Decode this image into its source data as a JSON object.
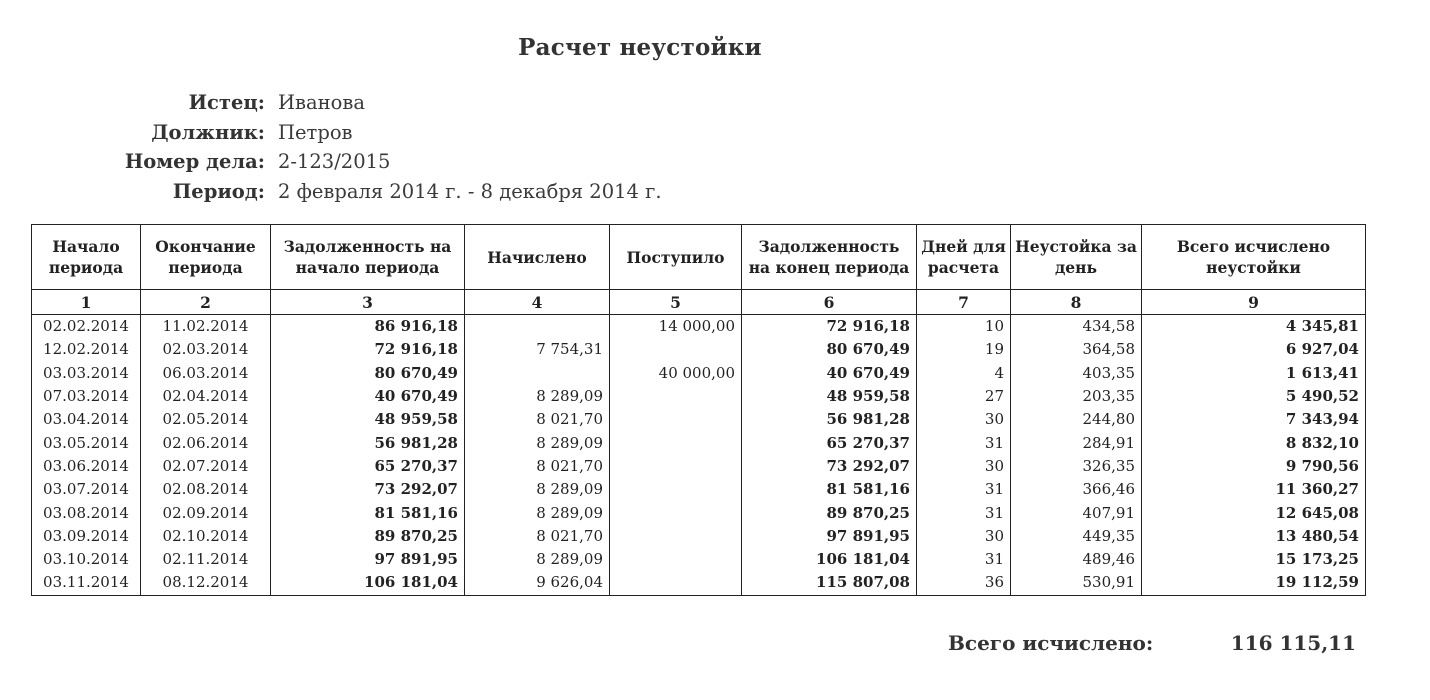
{
  "title": "Расчет неустойки",
  "info": [
    {
      "label": "Истец:",
      "value": "Иванова"
    },
    {
      "label": "Должник:",
      "value": "Петров"
    },
    {
      "label": "Номер дела:",
      "value": "2-123/2015"
    },
    {
      "label": "Период:",
      "value": "2 февраля 2014 г. - 8 декабря 2014 г."
    }
  ],
  "table": {
    "headers": [
      "Начало периода",
      "Окончание периода",
      "Задолженность на начало периода",
      "Начислено",
      "Поступило",
      "Задолженность на конец периода",
      "Дней для расчета",
      "Неустойка за день",
      "Всего исчислено неустойки"
    ],
    "numbers": [
      "1",
      "2",
      "3",
      "4",
      "5",
      "6",
      "7",
      "8",
      "9"
    ],
    "rows": [
      [
        "02.02.2014",
        "11.02.2014",
        "86 916,18",
        "",
        "14 000,00",
        "72 916,18",
        "10",
        "434,58",
        "4 345,81"
      ],
      [
        "12.02.2014",
        "02.03.2014",
        "72 916,18",
        "7 754,31",
        "",
        "80 670,49",
        "19",
        "364,58",
        "6 927,04"
      ],
      [
        "03.03.2014",
        "06.03.2014",
        "80 670,49",
        "",
        "40 000,00",
        "40 670,49",
        "4",
        "403,35",
        "1 613,41"
      ],
      [
        "07.03.2014",
        "02.04.2014",
        "40 670,49",
        "8 289,09",
        "",
        "48 959,58",
        "27",
        "203,35",
        "5 490,52"
      ],
      [
        "03.04.2014",
        "02.05.2014",
        "48 959,58",
        "8 021,70",
        "",
        "56 981,28",
        "30",
        "244,80",
        "7 343,94"
      ],
      [
        "03.05.2014",
        "02.06.2014",
        "56 981,28",
        "8 289,09",
        "",
        "65 270,37",
        "31",
        "284,91",
        "8 832,10"
      ],
      [
        "03.06.2014",
        "02.07.2014",
        "65 270,37",
        "8 021,70",
        "",
        "73 292,07",
        "30",
        "326,35",
        "9 790,56"
      ],
      [
        "03.07.2014",
        "02.08.2014",
        "73 292,07",
        "8 289,09",
        "",
        "81 581,16",
        "31",
        "366,46",
        "11 360,27"
      ],
      [
        "03.08.2014",
        "02.09.2014",
        "81 581,16",
        "8 289,09",
        "",
        "89 870,25",
        "31",
        "407,91",
        "12 645,08"
      ],
      [
        "03.09.2014",
        "02.10.2014",
        "89 870,25",
        "8 021,70",
        "",
        "97 891,95",
        "30",
        "449,35",
        "13 480,54"
      ],
      [
        "03.10.2014",
        "02.11.2014",
        "97 891,95",
        "8 289,09",
        "",
        "106 181,04",
        "31",
        "489,46",
        "15 173,25"
      ],
      [
        "03.11.2014",
        "08.12.2014",
        "106 181,04",
        "9 626,04",
        "",
        "115 807,08",
        "36",
        "530,91",
        "19 112,59"
      ]
    ]
  },
  "total": {
    "label": "Всего исчислено:",
    "value": "116 115,11"
  }
}
